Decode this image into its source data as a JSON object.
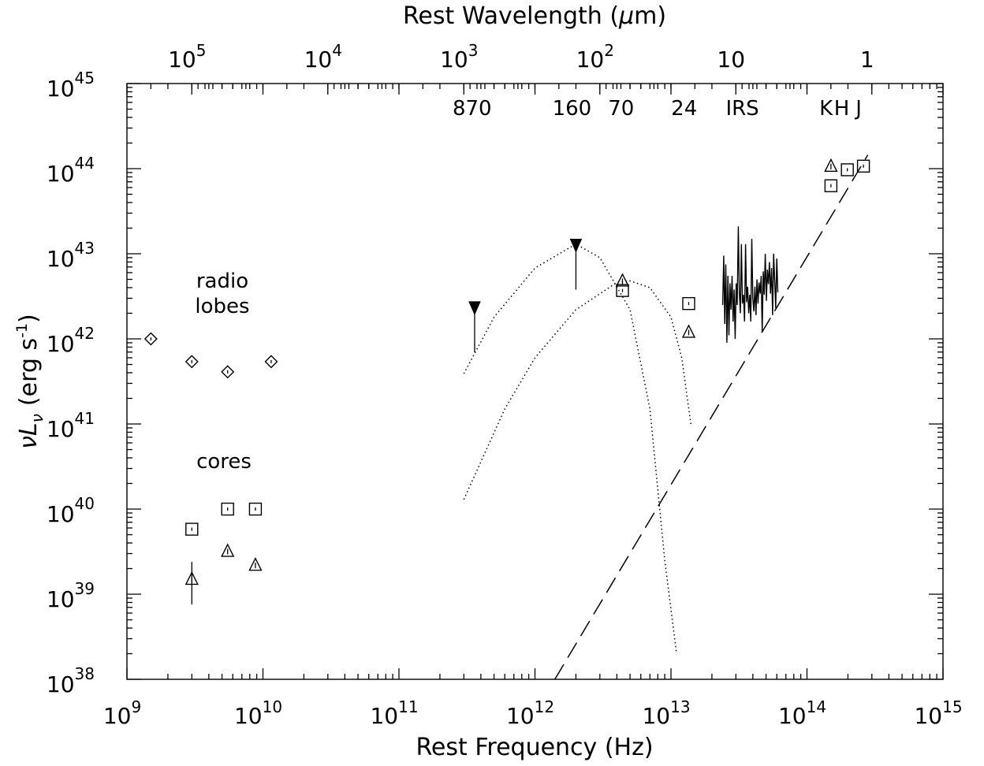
{
  "chart_data": {
    "type": "scatter",
    "title": "",
    "xlabel": "Rest Frequency (Hz)",
    "ylabel": "νL",
    "ylabel_sub": "ν",
    "ylabel_units_prefix": "(erg s",
    "ylabel_units_exp": "-1",
    "ylabel_units_suffix": ")",
    "top_xlabel_prefix": "Rest Wavelength (",
    "top_xlabel_mu": "μ",
    "top_xlabel_suffix": "m)",
    "xscale": "log",
    "yscale": "log",
    "xlim": [
      1000000000.0,
      1000000000000000.0
    ],
    "ylim": [
      1e+38,
      1e+45
    ],
    "x_ticks": [
      {
        "base": "10",
        "exp": "9",
        "value": 1000000000.0
      },
      {
        "base": "10",
        "exp": "10",
        "value": 10000000000.0
      },
      {
        "base": "10",
        "exp": "11",
        "value": 100000000000.0
      },
      {
        "base": "10",
        "exp": "12",
        "value": 1000000000000.0
      },
      {
        "base": "10",
        "exp": "13",
        "value": 10000000000000.0
      },
      {
        "base": "10",
        "exp": "14",
        "value": 100000000000000.0
      },
      {
        "base": "10",
        "exp": "15",
        "value": 1000000000000000.0
      }
    ],
    "y_ticks": [
      {
        "base": "10",
        "exp": "38",
        "value": 1e+38
      },
      {
        "base": "10",
        "exp": "39",
        "value": 1e+39
      },
      {
        "base": "10",
        "exp": "40",
        "value": 1e+40
      },
      {
        "base": "10",
        "exp": "41",
        "value": 1e+41
      },
      {
        "base": "10",
        "exp": "42",
        "value": 1e+42
      },
      {
        "base": "10",
        "exp": "43",
        "value": 1e+43
      },
      {
        "base": "10",
        "exp": "44",
        "value": 1e+44
      },
      {
        "base": "10",
        "exp": "45",
        "value": 1e+45
      }
    ],
    "top_ticks": [
      {
        "base": "10",
        "exp": "5",
        "um": 100000
      },
      {
        "base": "10",
        "exp": "4",
        "um": 10000
      },
      {
        "base": "10",
        "exp": "3",
        "um": 1000
      },
      {
        "base": "10",
        "exp": "2",
        "um": 100
      },
      {
        "base": "10",
        "exp": "",
        "um": 10
      },
      {
        "base": "1",
        "exp": "",
        "um": 1
      }
    ],
    "band_labels": [
      {
        "text": "870",
        "x": 345000000000.0
      },
      {
        "text": "160",
        "x": 1870000000000.0
      },
      {
        "text": "70",
        "x": 4300000000000.0
      },
      {
        "text": "24",
        "x": 12500000000000.0
      },
      {
        "text": "IRS",
        "x": 33500000000000.0
      },
      {
        "text": "K",
        "x": 138000000000000.0
      },
      {
        "text": "H",
        "x": 180000000000000.0
      },
      {
        "text": "J",
        "x": 240000000000000.0
      }
    ],
    "annotations": [
      "radio",
      "lobes",
      "cores"
    ],
    "series": [
      {
        "marker": "diamond",
        "points": [
          [
            1500000000.0,
            1e+42
          ],
          [
            3000000000.0,
            5.4e+41
          ],
          [
            5500000000.0,
            4.1e+41
          ],
          [
            11500000000.0,
            5.4e+41
          ]
        ]
      },
      {
        "marker": "square",
        "points": [
          [
            3000000000.0,
            5.8e+39
          ],
          [
            5500000000.0,
            1e+40
          ],
          [
            8800000000.0,
            1e+40
          ],
          [
            4400000000000.0,
            3.7e+42
          ],
          [
            13500000000000.0,
            2.6e+42
          ],
          [
            150000000000000.0,
            6.3e+43
          ],
          [
            198000000000000.0,
            9.7e+43
          ],
          [
            260000000000000.0,
            1.07e+44
          ]
        ]
      },
      {
        "marker": "triangle",
        "points": [
          [
            3000000000.0,
            1.5e+39
          ],
          [
            5500000000.0,
            3.2e+39
          ],
          [
            8800000000.0,
            2.2e+39
          ],
          [
            4400000000000.0,
            4.8e+42
          ],
          [
            13500000000000.0,
            1.2e+42
          ],
          [
            150000000000000.0,
            1.07e+44
          ]
        ]
      },
      {
        "marker": "upper-limit",
        "points": [
          [
            360000000000.0,
            2.3e+42
          ],
          [
            2000000000000.0,
            1.25e+43
          ]
        ]
      }
    ],
    "model_curves": [
      {
        "style": "dotted",
        "points": [
          [
            300000000000.0,
            3.9e+41
          ],
          [
            500000000000.0,
            1.8e+42
          ],
          [
            1000000000000.0,
            6.8e+42
          ],
          [
            2000000000000.0,
            1.3e+43
          ],
          [
            3000000000000.0,
            9e+42
          ],
          [
            5000000000000.0,
            2.2e+42
          ],
          [
            7000000000000.0,
            1.5e+41
          ],
          [
            9000000000000.0,
            2.5e+39
          ],
          [
            11000000000000.0,
            2e+38
          ]
        ]
      },
      {
        "style": "dotted",
        "points": [
          [
            300000000000.0,
            1.3e+40
          ],
          [
            600000000000.0,
            1.5e+41
          ],
          [
            1000000000000.0,
            6e+41
          ],
          [
            2000000000000.0,
            2.2e+42
          ],
          [
            4000000000000.0,
            4.6e+42
          ],
          [
            5000000000000.0,
            4.8e+42
          ],
          [
            7000000000000.0,
            4e+42
          ],
          [
            10000000000000.0,
            1.8e+42
          ],
          [
            12000000000000.0,
            6e+41
          ],
          [
            14000000000000.0,
            1e+41
          ]
        ]
      },
      {
        "style": "dashed",
        "points": [
          [
            1400000000000.0,
            1e+38
          ],
          [
            280000000000000.0,
            1.45e+44
          ]
        ]
      }
    ],
    "irs_spectrum": {
      "x_range": [
        24000000000000.0,
        61000000000000.0
      ],
      "values": [
        2.5e+42,
        9.5e+42,
        1.5e+42,
        7.5e+42,
        9e+41,
        5.5e+42,
        1.1e+42,
        4.5e+42,
        2.2e+42,
        5.5e+42,
        1.6e+42,
        3.8e+42,
        1e+42,
        4.5e+42,
        2.5e+42,
        2.1e+43,
        3.5e+42,
        2e+42,
        1.3e+43,
        2.6e+42,
        3.3e+42,
        1.6e+42,
        1.3e+43,
        2.7e+42,
        4.1e+42,
        2e+42,
        3.3e+42,
        1.6e+42,
        1.5e+43,
        3e+42,
        2.1e+42,
        4.1e+42,
        1.9e+42,
        5e+42,
        2.6e+42,
        4.6e+42,
        3.4e+42,
        5.5e+42,
        1.2e+42,
        6.2e+42,
        3.3e+42,
        1e+43,
        2.8e+42,
        6.5e+42,
        4.4e+42,
        8e+42,
        3.4e+42,
        6.8e+42,
        1.9e+42,
        1e+43,
        5e+42,
        2.3e+42,
        8.8e+42,
        3.5e+42
      ]
    }
  }
}
